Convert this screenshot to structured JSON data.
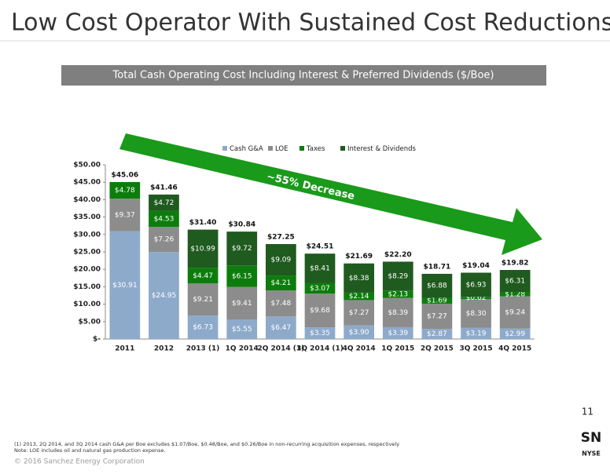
{
  "slide": {
    "title": "Low Cost Operator With Sustained Cost Reductions",
    "page_number": "11",
    "footnotes": [
      "(1) 2013, 2Q 2014, and 3Q 2014 cash G&A per Boe excludes $1.07/Boe, $0.48/Boe, and $0.26/Boe in non-recurring acquisition expenses, respectively",
      "Note: LOE includes oil and natural gas production expense."
    ],
    "copyright": "© 2016 Sanchez Energy Corporation",
    "logo": {
      "ticker": "SN",
      "exchange": "NYSE"
    }
  },
  "chart_data": {
    "type": "stacked_bar",
    "title": "Total Cash Operating Cost Including Interest & Preferred Dividends ($/Boe)",
    "annotation": "~55% Decrease",
    "categories": [
      "2011",
      "2012",
      "2013 (1)",
      "1Q 2014",
      "2Q 2014 (1)",
      "3Q 2014 (1)",
      "4Q 2014",
      "1Q 2015",
      "2Q 2015",
      "3Q 2015",
      "4Q 2015"
    ],
    "series": [
      {
        "name": "Cash G&A",
        "color": "#8eaacb",
        "values": [
          30.91,
          24.95,
          6.73,
          5.55,
          6.47,
          3.35,
          3.9,
          3.39,
          2.87,
          3.19,
          2.99
        ],
        "value_labels": [
          "$30.91",
          "$24.95",
          "$6.73",
          "$5.55",
          "$6.47",
          "$3.35",
          "$3.90",
          "$3.39",
          "$2.87",
          "$3.19",
          "$2.99"
        ]
      },
      {
        "name": "LOE",
        "color": "#8c8c8c",
        "values": [
          9.37,
          7.26,
          9.21,
          9.41,
          7.48,
          9.68,
          7.27,
          8.39,
          7.27,
          8.3,
          9.24
        ],
        "value_labels": [
          "$9.37",
          "$7.26",
          "$9.21",
          "$9.41",
          "$7.48",
          "$9.68",
          "$7.27",
          "$8.39",
          "$7.27",
          "$8.30",
          "$9.24"
        ]
      },
      {
        "name": "Taxes",
        "color": "#0c7d0c",
        "values": [
          4.78,
          4.53,
          4.47,
          6.15,
          4.21,
          3.07,
          2.14,
          2.13,
          1.69,
          0.62,
          1.28
        ],
        "value_labels": [
          "$4.78",
          "$4.53",
          "$4.47",
          "$6.15",
          "$4.21",
          "$3.07",
          "$2.14",
          "$2.13",
          "$1.69",
          "$0.62",
          "$1.28"
        ]
      },
      {
        "name": "Interest & Dividends",
        "color": "#1f5a1f",
        "values": [
          null,
          4.72,
          10.99,
          9.72,
          9.09,
          8.41,
          8.38,
          8.29,
          6.88,
          6.93,
          6.31
        ],
        "value_labels": [
          null,
          "$4.72",
          "$10.99",
          "$9.72",
          "$9.09",
          "$8.41",
          "$8.38",
          "$8.29",
          "$6.88",
          "$6.93",
          "$6.31"
        ]
      }
    ],
    "totals": [
      45.06,
      41.46,
      31.4,
      30.84,
      27.25,
      24.51,
      21.69,
      22.2,
      18.71,
      19.04,
      19.82
    ],
    "total_labels": [
      "$45.06",
      "$41.46",
      "$31.40",
      "$30.84",
      "$27.25",
      "$24.51",
      "$21.69",
      "$22.20",
      "$18.71",
      "$19.04",
      "$19.82"
    ],
    "ylim": [
      0,
      50
    ],
    "yticks": [
      {
        "value": 0,
        "label": "$-"
      },
      {
        "value": 5,
        "label": "$5.00"
      },
      {
        "value": 10,
        "label": "$10.00"
      },
      {
        "value": 15,
        "label": "$15.00"
      },
      {
        "value": 20,
        "label": "$20.00"
      },
      {
        "value": 25,
        "label": "$25.00"
      },
      {
        "value": 30,
        "label": "$30.00"
      },
      {
        "value": 35,
        "label": "$35.00"
      },
      {
        "value": 40,
        "label": "$40.00"
      },
      {
        "value": 45,
        "label": "$45.00"
      },
      {
        "value": 50,
        "label": "$50.00"
      }
    ],
    "legend": "top"
  }
}
